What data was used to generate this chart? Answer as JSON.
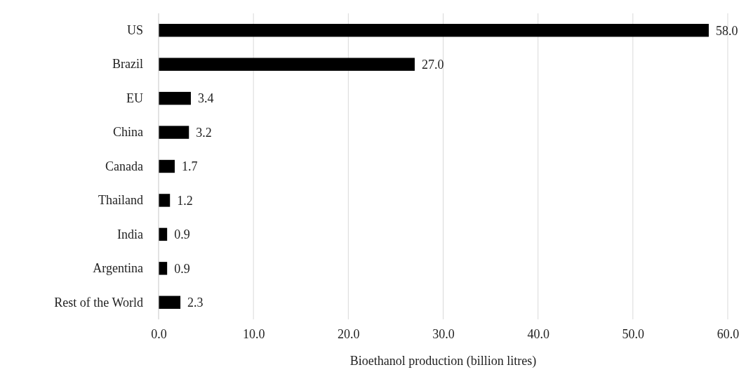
{
  "chart_data": {
    "type": "bar",
    "orientation": "horizontal",
    "xlabel": "Bioethanol production (billion litres)",
    "categories": [
      "US",
      "Brazil",
      "EU",
      "China",
      "Canada",
      "Thailand",
      "India",
      "Argentina",
      "Rest of the World"
    ],
    "values": [
      58.0,
      27.0,
      3.4,
      3.2,
      1.7,
      1.2,
      0.9,
      0.9,
      2.3
    ],
    "value_labels": [
      "58.0",
      "27.0",
      "3.4",
      "3.2",
      "1.7",
      "1.2",
      "0.9",
      "0.9",
      "2.3"
    ],
    "color": "#000000",
    "xlim": [
      0,
      60
    ],
    "xticks": [
      {
        "value": 0,
        "label": "0.0"
      },
      {
        "value": 10,
        "label": "10.0"
      },
      {
        "value": 20,
        "label": "20.0"
      },
      {
        "value": 30,
        "label": "30.0"
      },
      {
        "value": 40,
        "label": "40.0"
      },
      {
        "value": 50,
        "label": "50.0"
      },
      {
        "value": 60,
        "label": "60.0"
      }
    ],
    "grid": "x"
  }
}
